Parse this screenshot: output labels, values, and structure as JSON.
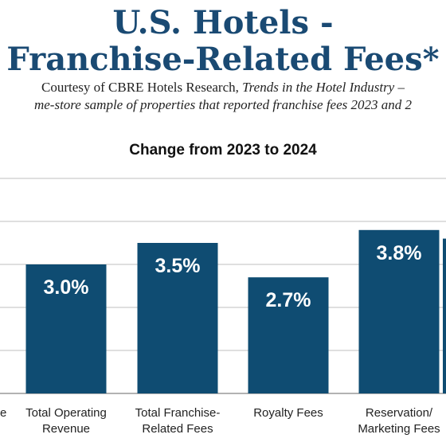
{
  "header": {
    "title_line1": "U.S. Hotels -",
    "title_line2": "Franchise-Related Fees*",
    "subtitle_line1_prefix": "Courtesy of CBRE Hotels Research, ",
    "subtitle_line1_italic": "Trends in the Hotel Industry –",
    "subtitle_line2": "me-store sample of properties that reported franchise fees 2023 and 2"
  },
  "colors": {
    "bar": "#0f4c72",
    "title": "#1a4a73",
    "grid": "#bfbfbf",
    "label_on_bar": "#ffffff"
  },
  "chart_data": {
    "type": "bar",
    "title": "Change from 2023 to 2024",
    "xlabel": "",
    "ylabel": "",
    "ylim": [
      0,
      5
    ],
    "grid": true,
    "partial_left_category_fragment": "e",
    "categories": [
      [
        "Total Operating",
        "Revenue"
      ],
      [
        "Total Franchise-",
        "Related Fees"
      ],
      [
        "Royalty Fees"
      ],
      [
        "Reservation/",
        "Marketing Fees"
      ]
    ],
    "values": [
      3.0,
      3.5,
      2.7,
      3.8
    ],
    "data_labels": [
      "3.0%",
      "3.5%",
      "2.7%",
      "3.8%"
    ]
  }
}
